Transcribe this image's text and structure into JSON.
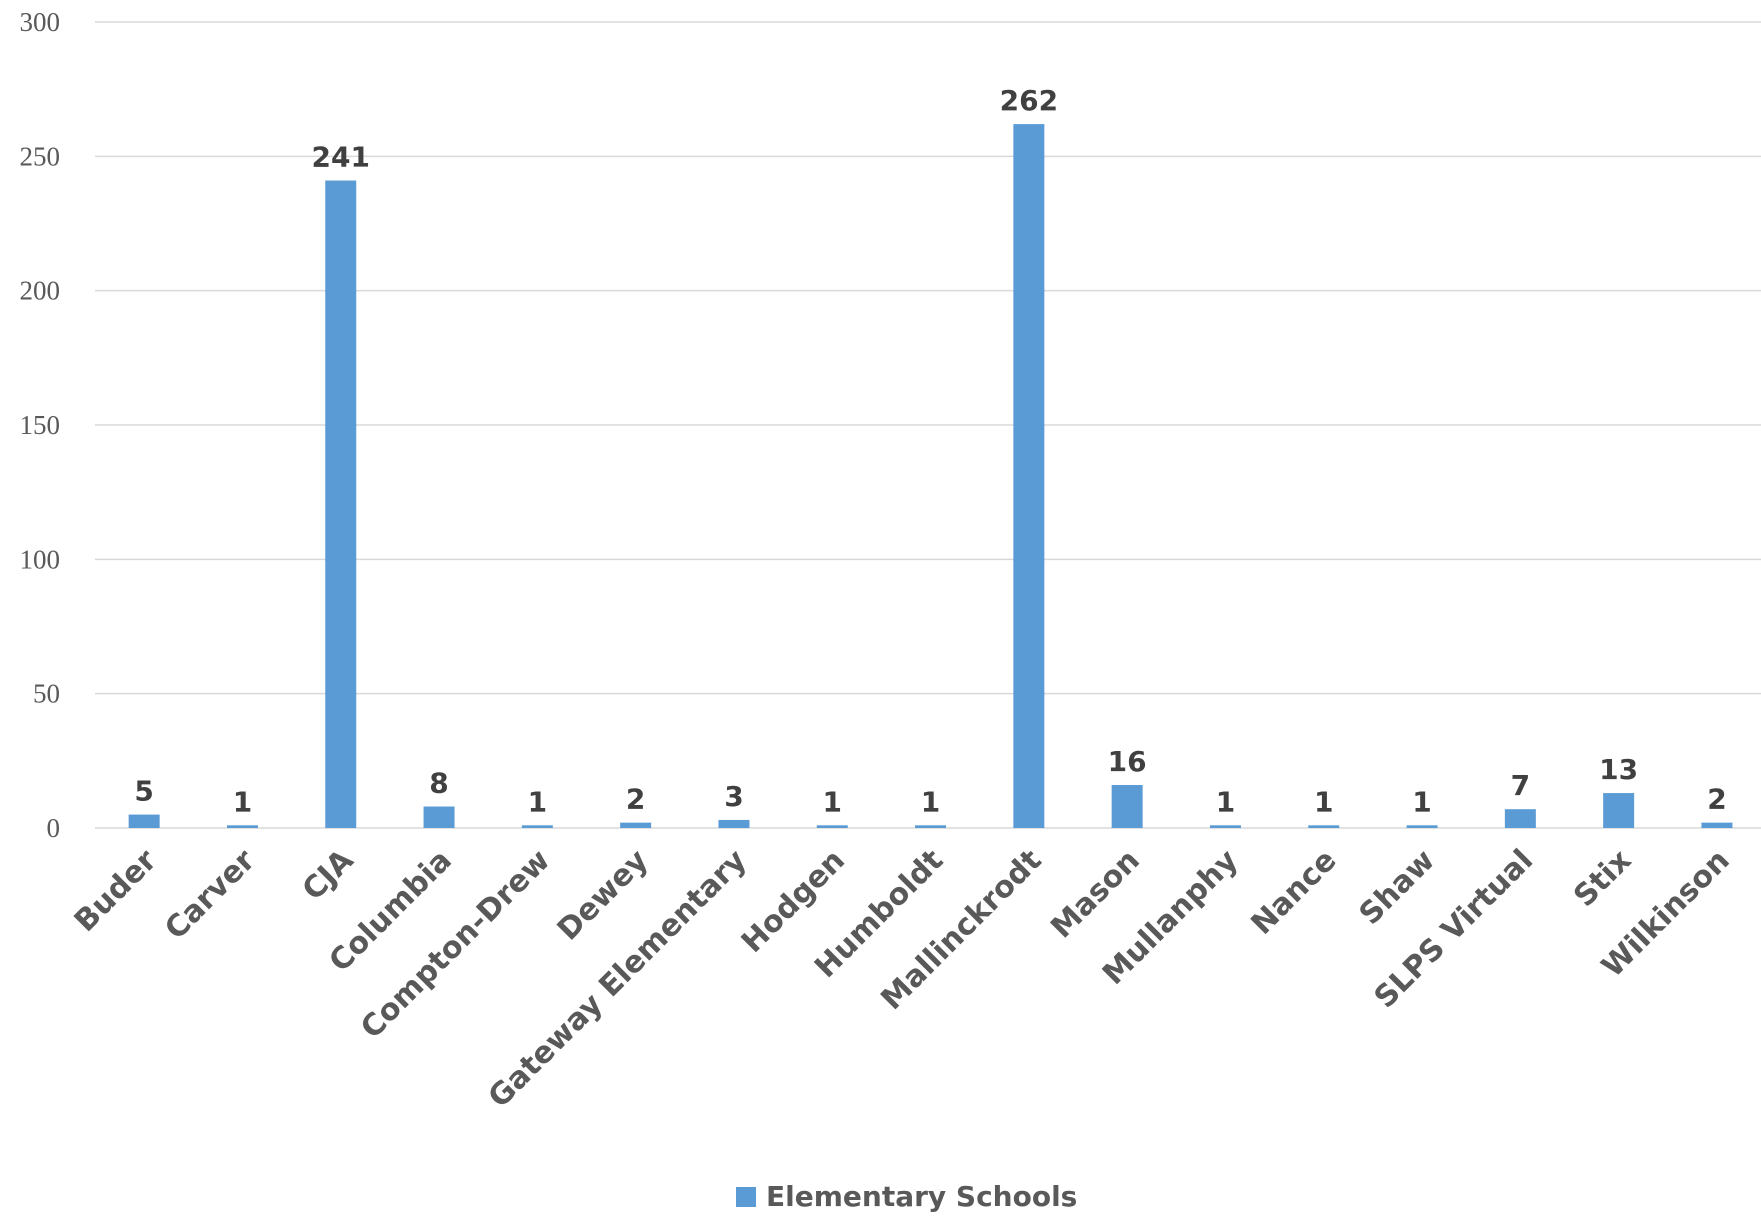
{
  "chart_data": {
    "type": "bar",
    "categories": [
      "Buder",
      "Carver",
      "CJA",
      "Columbia",
      "Compton-Drew",
      "Dewey",
      "Gateway Elementary",
      "Hodgen",
      "Humboldt",
      "Mallinckrodt",
      "Mason",
      "Mullanphy",
      "Nance",
      "Shaw",
      "SLPS Virtual",
      "Stix",
      "Wilkinson"
    ],
    "series": [
      {
        "name": "Elementary Schools",
        "values": [
          5,
          1,
          241,
          8,
          1,
          2,
          3,
          1,
          1,
          262,
          16,
          1,
          1,
          1,
          7,
          13,
          2
        ],
        "color": "#5b9bd5"
      }
    ],
    "ylim": [
      0,
      300
    ],
    "yticks": [
      0,
      50,
      100,
      150,
      200,
      250,
      300
    ],
    "grid": true,
    "legend_position": "bottom",
    "data_labels": true
  }
}
